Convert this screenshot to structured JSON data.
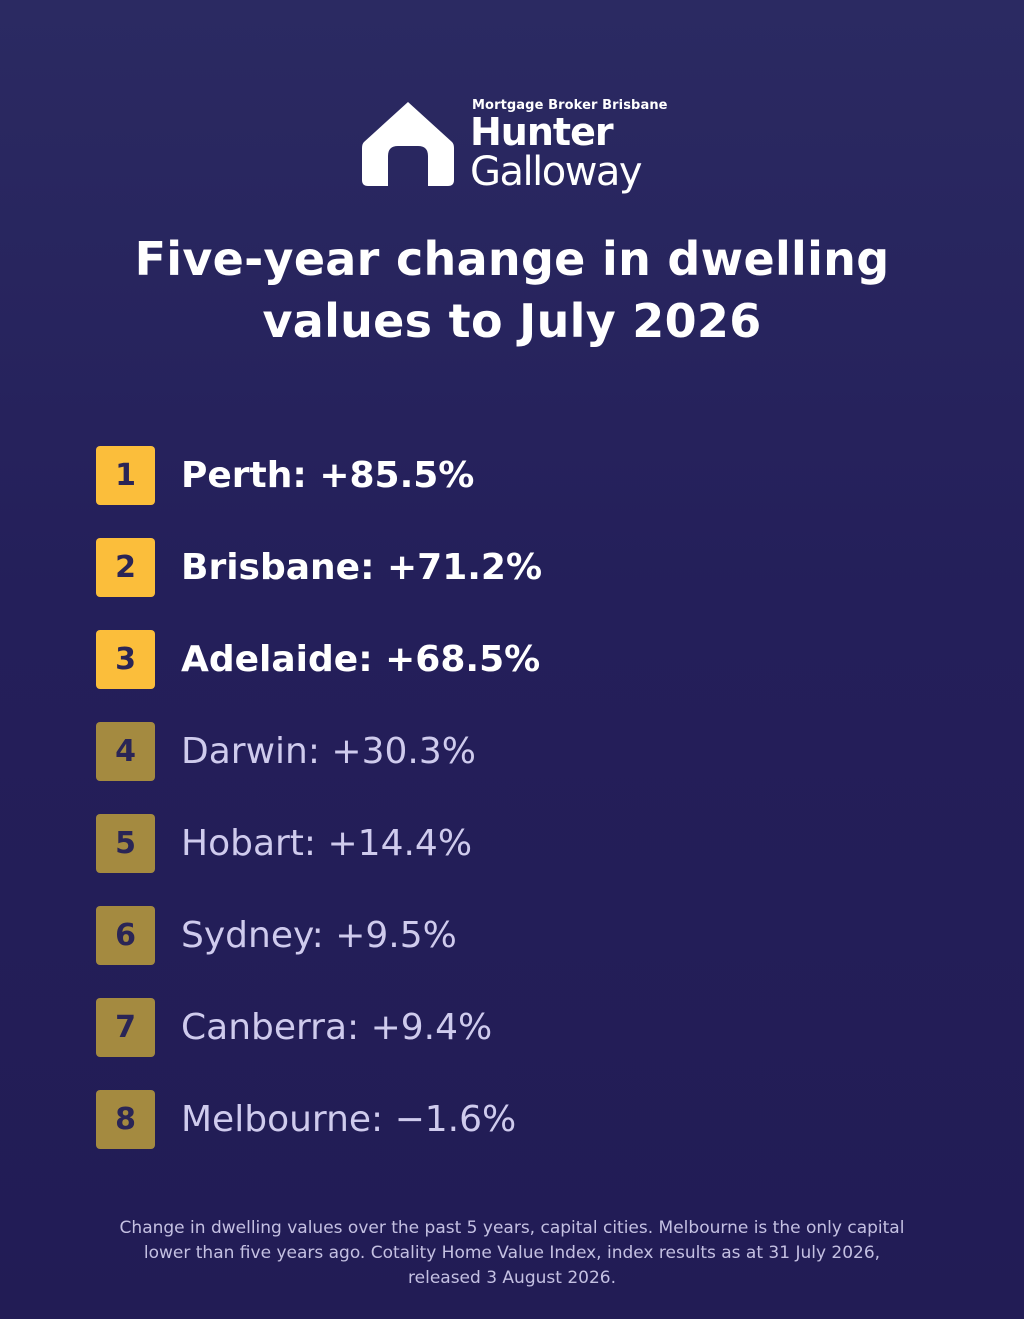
{
  "brand": {
    "tagline": "Mortgage Broker Brisbane",
    "name_line1": "Hunter",
    "name_line2": "Galloway",
    "logo_icon": "house-icon",
    "logo_color": "#ffffff"
  },
  "title": {
    "line1": "Five-year change in dwelling",
    "line2": "values to July 2026"
  },
  "colors": {
    "background": "#241f5a",
    "badge_top": "#fbbe3b",
    "badge_rest": "#a48a40",
    "text_muted": "#cfcbed"
  },
  "rankings": [
    {
      "rank": "1",
      "text": "Perth: +85.5%",
      "city": "Perth",
      "change_percent": 85.5,
      "highlight": true
    },
    {
      "rank": "2",
      "text": "Brisbane: +71.2%",
      "city": "Brisbane",
      "change_percent": 71.2,
      "highlight": true
    },
    {
      "rank": "3",
      "text": "Adelaide: +68.5%",
      "city": "Adelaide",
      "change_percent": 68.5,
      "highlight": true
    },
    {
      "rank": "4",
      "text": "Darwin: +30.3%",
      "city": "Darwin",
      "change_percent": 30.3,
      "highlight": false
    },
    {
      "rank": "5",
      "text": "Hobart: +14.4%",
      "city": "Hobart",
      "change_percent": 14.4,
      "highlight": false
    },
    {
      "rank": "6",
      "text": "Sydney: +9.5%",
      "city": "Sydney",
      "change_percent": 9.5,
      "highlight": false
    },
    {
      "rank": "7",
      "text": "Canberra: +9.4%",
      "city": "Canberra",
      "change_percent": 9.4,
      "highlight": false
    },
    {
      "rank": "8",
      "text": "Melbourne: −1.6%",
      "city": "Melbourne",
      "change_percent": -1.6,
      "highlight": false
    }
  ],
  "footnote": {
    "line1": "Change in dwelling values over the past 5 years, capital cities. Melbourne is the only capital",
    "line2": "lower than five years ago. Cotality Home Value Index, index results as at 31 July 2026,",
    "line3": "released 3 August 2026."
  }
}
